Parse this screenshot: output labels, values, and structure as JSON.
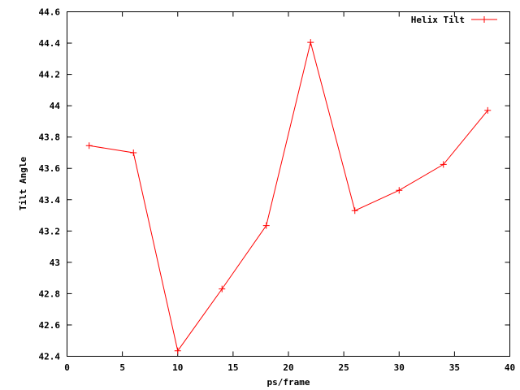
{
  "chart_data": {
    "type": "line",
    "title": "",
    "xlabel": "ps/frame",
    "ylabel": "Tilt Angle",
    "xlim": [
      0,
      40
    ],
    "ylim": [
      42.4,
      44.6
    ],
    "xticks": [
      0,
      5,
      10,
      15,
      20,
      25,
      30,
      35,
      40
    ],
    "xtick_labels": [
      "0",
      "5",
      "10",
      "15",
      "20",
      "25",
      "30",
      "35",
      "40"
    ],
    "yticks": [
      42.4,
      42.6,
      42.8,
      43.0,
      43.2,
      43.4,
      43.6,
      43.8,
      44.0,
      44.2,
      44.4,
      44.6
    ],
    "ytick_labels": [
      "42.4",
      "42.6",
      "42.8",
      "43",
      "43.2",
      "43.4",
      "43.6",
      "43.8",
      "44",
      "44.2",
      "44.4",
      "44.6"
    ],
    "grid": false,
    "legend_position": "top-right",
    "series": [
      {
        "name": "Helix Tilt",
        "color": "#ff0000",
        "marker": "plus",
        "x": [
          2,
          6,
          10,
          14,
          18,
          22,
          26,
          30,
          34,
          38
        ],
        "y": [
          43.745,
          43.7,
          42.435,
          42.83,
          43.235,
          44.405,
          43.33,
          43.46,
          43.625,
          43.97
        ]
      }
    ]
  }
}
